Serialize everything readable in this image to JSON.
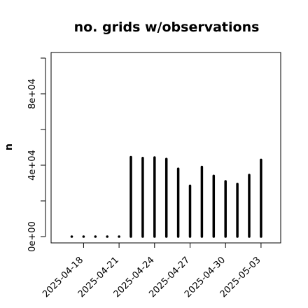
{
  "chart_data": {
    "type": "bar",
    "title": "no. grids w/observations",
    "xlabel": "",
    "ylabel": "n",
    "ylim": [
      0,
      100000
    ],
    "y_ticks": [
      0,
      40000,
      80000
    ],
    "y_tick_labels": [
      "0e+00",
      "4e+04",
      "8e+04"
    ],
    "x_ticks": [
      "2025-04-18",
      "2025-04-21",
      "2025-04-24",
      "2025-04-27",
      "2025-04-30",
      "2025-05-03"
    ],
    "x_tick_colors": [
      "#000000",
      "#000000",
      "#228B22",
      "#000000",
      "#000000",
      "#000000"
    ],
    "grid": false,
    "categories": [
      "2025-04-17",
      "2025-04-18",
      "2025-04-19",
      "2025-04-20",
      "2025-04-21",
      "2025-04-22",
      "2025-04-23",
      "2025-04-24",
      "2025-04-25",
      "2025-04-26",
      "2025-04-27",
      "2025-04-28",
      "2025-04-29",
      "2025-04-30",
      "2025-05-01",
      "2025-05-02",
      "2025-05-03"
    ],
    "values": [
      0,
      0,
      0,
      0,
      0,
      44500,
      44000,
      44300,
      43500,
      38000,
      28500,
      39000,
      34000,
      31000,
      29500,
      34500,
      43000
    ],
    "bar_color": "#000000"
  }
}
